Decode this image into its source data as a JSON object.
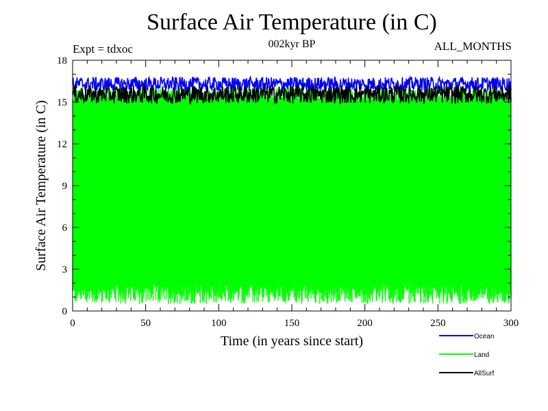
{
  "header": {
    "title": "Surface Air Temperature (in C)",
    "subtitle": "002kyr BP",
    "expt": "Expt = tdxoc",
    "months": "ALL_MONTHS"
  },
  "chart_data": {
    "type": "line",
    "title": "Surface Air Temperature (in C)",
    "xlabel": "Time (in years since start)",
    "ylabel": "Surface Air Temperature (in C)",
    "xlim": [
      0,
      300
    ],
    "ylim": [
      0,
      18
    ],
    "xticks": [
      0,
      50,
      100,
      150,
      200,
      250,
      300
    ],
    "yticks": [
      0,
      3,
      6,
      9,
      12,
      15,
      18
    ],
    "grid": false,
    "legend_position": "bottom-right",
    "series": [
      {
        "name": "Ocean",
        "color": "#0000ff",
        "mean": 16.3,
        "min": 15.8,
        "max": 16.8
      },
      {
        "name": "Land",
        "color": "#00ff00",
        "mean": 8.5,
        "min": 0.5,
        "max": 16.0
      },
      {
        "name": "AllSurf",
        "color": "#000000",
        "mean": 15.6,
        "min": 14.9,
        "max": 16.2
      }
    ]
  }
}
